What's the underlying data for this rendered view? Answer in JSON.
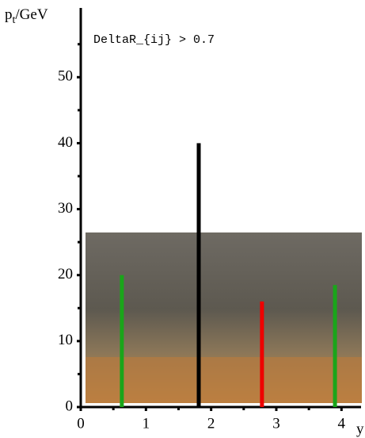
{
  "chart_data": {
    "type": "bar",
    "annotation": "DeltaR_{ij} > 0.7",
    "ylabel": [
      "p",
      "t",
      "/GeV"
    ],
    "xlabel": "y",
    "x": [
      0.63,
      1.81,
      2.78,
      3.9
    ],
    "values": [
      20,
      40,
      16,
      18.5
    ],
    "colors": [
      "#1aa51a",
      "#000000",
      "#ee0000",
      "#1aa51a"
    ],
    "xlim": [
      0,
      4.3
    ],
    "ylim": [
      0,
      60.5
    ],
    "xticks": [
      0,
      1,
      2,
      3,
      4
    ],
    "xticks_minor": [
      0.5,
      1.5,
      2.5,
      3.5
    ],
    "yticks": [
      0,
      10,
      20,
      30,
      40,
      50
    ],
    "yticks_minor": [
      5,
      15,
      25,
      35,
      45,
      55
    ]
  }
}
